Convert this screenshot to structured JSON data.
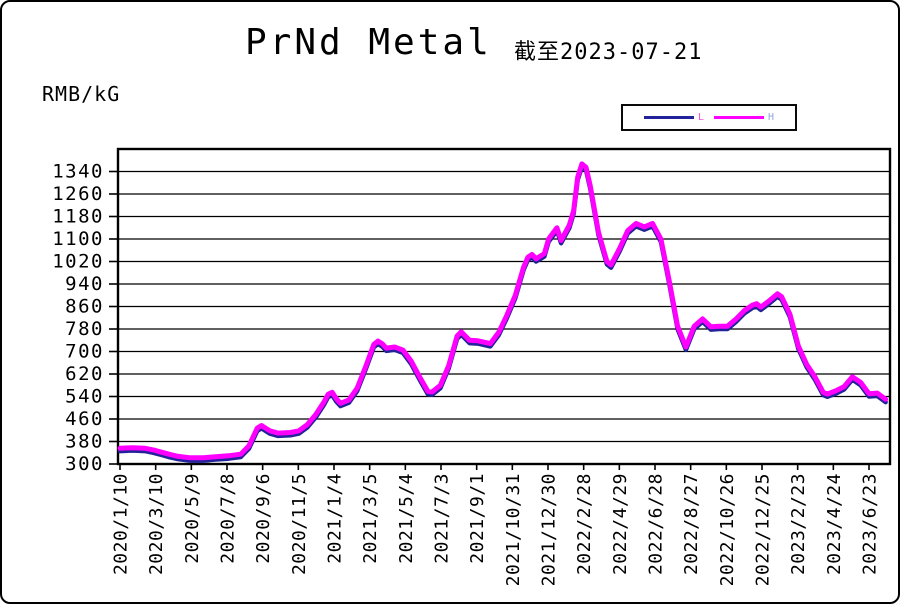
{
  "header": {
    "title": "PrNd Metal",
    "subtitle": "截至2023-07-21"
  },
  "chart_data": {
    "type": "line",
    "title": "PrNd Metal",
    "as_of_label": "截至2023-07-21",
    "ylabel": "RMB/kG",
    "xlabel": "",
    "ylim": [
      300,
      1340
    ],
    "y_tick_step": 80,
    "grid": "horizontal",
    "y_ticks": [
      1340,
      1260,
      1180,
      1100,
      1020,
      940,
      860,
      780,
      700,
      620,
      540,
      460,
      380,
      300
    ],
    "x_tick_labels": [
      "2020/1/10",
      "2020/3/10",
      "2020/5/9",
      "2020/7/8",
      "2020/9/6",
      "2020/11/5",
      "2021/1/4",
      "2021/3/5",
      "2021/5/4",
      "2021/7/3",
      "2021/9/1",
      "2021/10/31",
      "2021/12/30",
      "2022/2/28",
      "2022/4/29",
      "2022/6/28",
      "2022/8/27",
      "2022/10/26",
      "2022/12/25",
      "2023/2/23",
      "2023/4/24",
      "2023/6/23"
    ],
    "x_tick_interval_days": 60,
    "x_start_date": "2020-01-10",
    "x_end_date": "2023-07-21",
    "legend": {
      "position": "top-right",
      "entries": [
        {
          "name": "L",
          "line_color": "#22229a",
          "label_color": "#ff50d8"
        },
        {
          "name": "H",
          "line_color": "#ff00ff",
          "label_color": "#93a6e0"
        }
      ]
    },
    "dates": [
      "2020-01-10",
      "2020-01-31",
      "2020-02-21",
      "2020-03-06",
      "2020-03-20",
      "2020-04-03",
      "2020-04-17",
      "2020-05-08",
      "2020-05-29",
      "2020-06-19",
      "2020-07-10",
      "2020-07-31",
      "2020-08-14",
      "2020-08-28",
      "2020-09-04",
      "2020-09-18",
      "2020-10-02",
      "2020-10-23",
      "2020-11-06",
      "2020-11-20",
      "2020-12-04",
      "2020-12-18",
      "2020-12-25",
      "2021-01-01",
      "2021-01-08",
      "2021-01-15",
      "2021-01-29",
      "2021-02-12",
      "2021-02-26",
      "2021-03-12",
      "2021-03-19",
      "2021-03-26",
      "2021-04-02",
      "2021-04-16",
      "2021-04-30",
      "2021-05-14",
      "2021-05-28",
      "2021-06-11",
      "2021-06-18",
      "2021-07-02",
      "2021-07-16",
      "2021-07-30",
      "2021-08-06",
      "2021-08-20",
      "2021-09-03",
      "2021-09-24",
      "2021-10-08",
      "2021-10-22",
      "2021-11-05",
      "2021-11-19",
      "2021-11-26",
      "2021-12-03",
      "2021-12-10",
      "2021-12-24",
      "2021-12-31",
      "2022-01-14",
      "2022-01-21",
      "2022-02-04",
      "2022-02-11",
      "2022-02-18",
      "2022-02-25",
      "2022-03-04",
      "2022-03-11",
      "2022-03-25",
      "2022-04-08",
      "2022-04-15",
      "2022-04-29",
      "2022-05-13",
      "2022-05-27",
      "2022-06-10",
      "2022-06-24",
      "2022-07-08",
      "2022-07-22",
      "2022-08-05",
      "2022-08-19",
      "2022-09-02",
      "2022-09-16",
      "2022-09-30",
      "2022-10-14",
      "2022-10-28",
      "2022-11-11",
      "2022-11-25",
      "2022-12-09",
      "2022-12-16",
      "2022-12-23",
      "2023-01-06",
      "2023-01-20",
      "2023-01-27",
      "2023-02-10",
      "2023-02-24",
      "2023-03-10",
      "2023-03-24",
      "2023-04-07",
      "2023-04-14",
      "2023-04-28",
      "2023-05-12",
      "2023-05-26",
      "2023-06-09",
      "2023-06-23",
      "2023-07-07",
      "2023-07-21"
    ],
    "series": [
      {
        "name": "L",
        "color": "#22229a",
        "values": [
          346,
          348,
          346,
          340,
          332,
          324,
          317,
          312,
          312,
          316,
          319,
          325,
          355,
          418,
          427,
          408,
          400,
          402,
          408,
          430,
          465,
          510,
          538,
          545,
          522,
          506,
          518,
          560,
          635,
          715,
          727,
          718,
          702,
          706,
          695,
          655,
          600,
          548,
          546,
          570,
          640,
          745,
          760,
          730,
          728,
          718,
          758,
          820,
          890,
          990,
          1025,
          1035,
          1020,
          1038,
          1090,
          1130,
          1085,
          1140,
          1190,
          1310,
          1357,
          1345,
          1280,
          1114,
          1010,
          998,
          1054,
          1120,
          1145,
          1133,
          1145,
          1090,
          940,
          780,
          706,
          780,
          806,
          778,
          780,
          780,
          805,
          835,
          855,
          860,
          848,
          870,
          895,
          885,
          823,
          710,
          645,
          600,
          545,
          539,
          550,
          565,
          600,
          580,
          540,
          542,
          520
        ]
      },
      {
        "name": "H",
        "color": "#ff00ff",
        "values": [
          356,
          358,
          356,
          350,
          342,
          334,
          327,
          322,
          322,
          326,
          329,
          335,
          365,
          428,
          437,
          418,
          410,
          412,
          418,
          440,
          475,
          520,
          548,
          555,
          532,
          516,
          528,
          570,
          645,
          725,
          737,
          728,
          712,
          716,
          705,
          665,
          610,
          558,
          556,
          580,
          650,
          755,
          770,
          740,
          738,
          728,
          768,
          830,
          900,
          1000,
          1035,
          1045,
          1030,
          1048,
          1100,
          1140,
          1095,
          1150,
          1200,
          1320,
          1367,
          1355,
          1290,
          1124,
          1020,
          1008,
          1064,
          1130,
          1155,
          1143,
          1155,
          1100,
          950,
          790,
          716,
          790,
          816,
          788,
          790,
          790,
          815,
          845,
          865,
          870,
          858,
          880,
          905,
          895,
          833,
          720,
          655,
          610,
          555,
          549,
          560,
          575,
          610,
          590,
          550,
          552,
          530
        ]
      }
    ]
  }
}
